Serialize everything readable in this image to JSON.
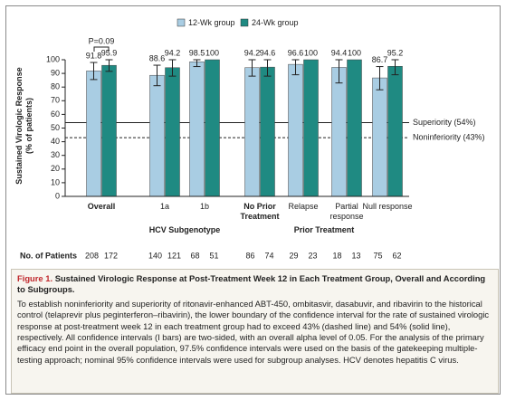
{
  "chart_data": {
    "type": "bar",
    "y_label": [
      "Sustained Virologic Response",
      "(% of patients)"
    ],
    "categories": [
      "Overall",
      "1a",
      "1b",
      "No Prior Treatment",
      "Relapse",
      "Partial response",
      "Null response"
    ],
    "groups": [
      "HCV Subgenotype",
      "Prior Treatment"
    ],
    "series": [
      {
        "name": "12-Wk group",
        "color": "#a9cde3",
        "values": [
          91.8,
          88.6,
          98.5,
          94.2,
          96.6,
          94.4,
          86.7
        ],
        "ci_low": [
          85.5,
          81,
          95,
          88,
          89,
          83,
          78
        ],
        "ci_high": [
          98,
          96,
          100,
          100,
          100,
          100,
          95
        ],
        "n": [
          208,
          140,
          68,
          86,
          29,
          18,
          75
        ]
      },
      {
        "name": "24-Wk group",
        "color": "#1f8a82",
        "values": [
          95.9,
          94.2,
          100,
          94.6,
          100,
          100,
          95.2
        ],
        "ci_low": [
          91.5,
          88,
          null,
          88,
          null,
          null,
          89
        ],
        "ci_high": [
          100,
          100,
          null,
          100,
          null,
          null,
          100
        ],
        "n": [
          172,
          121,
          51,
          74,
          23,
          13,
          62
        ]
      }
    ],
    "ylim": [
      0,
      100
    ],
    "yticks": [
      0,
      10,
      20,
      30,
      40,
      50,
      60,
      70,
      80,
      90,
      100
    ],
    "reference_lines": [
      {
        "value": 54,
        "label": "Superiority (54%)",
        "style": "solid"
      },
      {
        "value": 43,
        "label": "Noninferiority (43%)",
        "style": "dashed"
      }
    ],
    "annotation": "P=0.09",
    "patients_label": "No. of Patients"
  },
  "caption": {
    "figure_label": "Figure 1.",
    "title": "Sustained Virologic Response at Post-Treatment Week 12 in Each Treatment Group, Overall and According to Subgroups.",
    "body": "To establish noninferiority and superiority of ritonavir-enhanced ABT-450, ombitasvir, dasabuvir, and ribavirin to the historical control (telaprevir plus peginterferon–ribavirin), the lower boundary of the confidence interval for the rate of sustained virologic response at post-treatment week 12 in each treatment group had to exceed 43% (dashed line) and 54% (solid line), respectively. All confidence intervals (I bars) are two-sided, with an overall alpha level of 0.05. For the analysis of the primary efficacy end point in the overall population, 97.5% confidence intervals were used on the basis of the gatekeeping multiple-testing approach; nominal 95% confidence intervals were used for subgroup analyses. HCV denotes hepatitis C virus."
  }
}
